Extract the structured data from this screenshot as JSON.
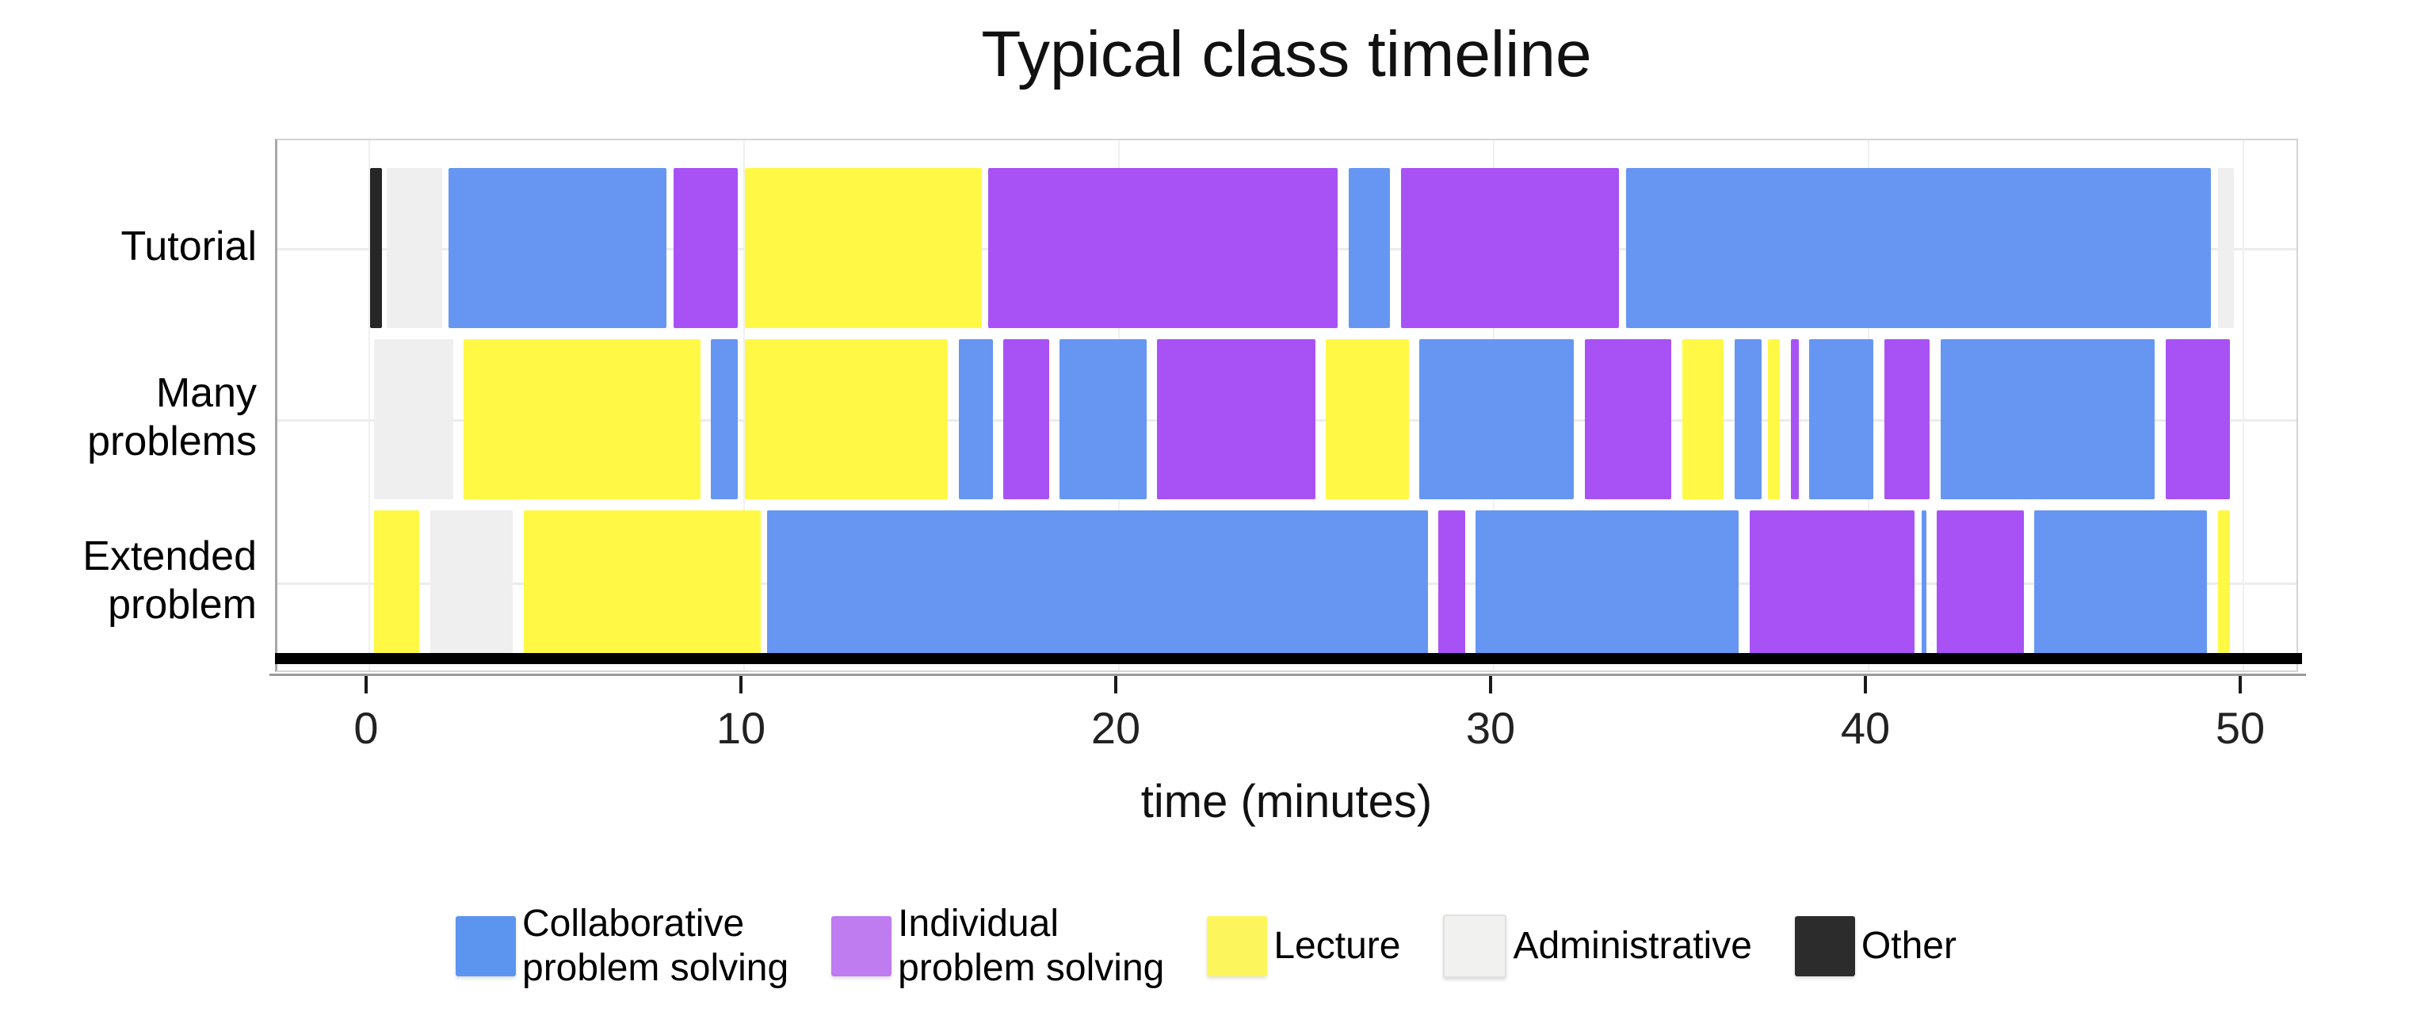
{
  "title": "Typical class timeline",
  "xlabel": "time (minutes)",
  "chart_data": {
    "type": "timeline-bar",
    "title": "Typical class timeline",
    "xlabel": "time (minutes)",
    "x_ticks": [
      0,
      10,
      20,
      30,
      40,
      50
    ],
    "x_tick_labels": [
      "0",
      "10",
      "20",
      "30",
      "40",
      "50"
    ],
    "xlim": [
      -2.4,
      51.5
    ],
    "grid": "light gray at row centers and x ticks",
    "legend_position": "bottom",
    "categories": {
      "collaborative": {
        "label": "Collaborative problem solving",
        "color": "#6696F2"
      },
      "individual": {
        "label": "Individual problem solving",
        "color": "#A852F5"
      },
      "lecture": {
        "label": "Lecture",
        "color": "#FFF946"
      },
      "administrative": {
        "label": "Administrative",
        "color": "#EFEFEF"
      },
      "other": {
        "label": "Other",
        "color": "#262626"
      }
    },
    "legend": [
      {
        "key": "collaborative",
        "label_lines": [
          "Collaborative",
          "problem solving"
        ],
        "swatch": "#5B95F0"
      },
      {
        "key": "individual",
        "label_lines": [
          "Individual",
          "problem solving"
        ],
        "swatch": "#BE7CF0"
      },
      {
        "key": "lecture",
        "label_lines": [
          "Lecture"
        ],
        "swatch": "#FCF65C"
      },
      {
        "key": "administrative",
        "label_lines": [
          "Administrative"
        ],
        "swatch": "#F1F1F0"
      },
      {
        "key": "other",
        "label_lines": [
          "Other"
        ],
        "swatch": "#2D2C2C"
      }
    ],
    "rows": [
      {
        "label": "Tutorial",
        "label_lines": [
          "Tutorial"
        ],
        "segments": [
          {
            "start": 0.0,
            "end": 0.4,
            "category": "other"
          },
          {
            "start": 0.45,
            "end": 2.0,
            "category": "administrative"
          },
          {
            "start": 2.1,
            "end": 8.0,
            "category": "collaborative"
          },
          {
            "start": 8.1,
            "end": 9.9,
            "category": "individual"
          },
          {
            "start": 10.0,
            "end": 16.4,
            "category": "lecture"
          },
          {
            "start": 16.5,
            "end": 25.9,
            "category": "individual"
          },
          {
            "start": 26.1,
            "end": 27.3,
            "category": "collaborative"
          },
          {
            "start": 27.5,
            "end": 33.4,
            "category": "individual"
          },
          {
            "start": 33.5,
            "end": 49.2,
            "category": "collaborative"
          },
          {
            "start": 49.3,
            "end": 49.8,
            "category": "administrative"
          }
        ]
      },
      {
        "label": "Many problems",
        "label_lines": [
          "Many",
          "problems"
        ],
        "segments": [
          {
            "start": 0.1,
            "end": 2.3,
            "category": "administrative"
          },
          {
            "start": 2.5,
            "end": 8.9,
            "category": "lecture"
          },
          {
            "start": 9.1,
            "end": 9.9,
            "category": "collaborative"
          },
          {
            "start": 10.0,
            "end": 15.5,
            "category": "lecture"
          },
          {
            "start": 15.7,
            "end": 16.7,
            "category": "collaborative"
          },
          {
            "start": 16.9,
            "end": 18.2,
            "category": "individual"
          },
          {
            "start": 18.4,
            "end": 20.8,
            "category": "collaborative"
          },
          {
            "start": 21.0,
            "end": 25.3,
            "category": "individual"
          },
          {
            "start": 25.5,
            "end": 27.8,
            "category": "lecture"
          },
          {
            "start": 28.0,
            "end": 32.2,
            "category": "collaborative"
          },
          {
            "start": 32.4,
            "end": 34.8,
            "category": "individual"
          },
          {
            "start": 35.0,
            "end": 36.2,
            "category": "lecture"
          },
          {
            "start": 36.4,
            "end": 37.2,
            "category": "collaborative"
          },
          {
            "start": 37.3,
            "end": 37.7,
            "category": "lecture"
          },
          {
            "start": 37.9,
            "end": 38.2,
            "category": "individual"
          },
          {
            "start": 38.4,
            "end": 40.2,
            "category": "collaborative"
          },
          {
            "start": 40.4,
            "end": 41.7,
            "category": "individual"
          },
          {
            "start": 41.9,
            "end": 47.7,
            "category": "collaborative"
          },
          {
            "start": 47.9,
            "end": 49.7,
            "category": "individual"
          }
        ]
      },
      {
        "label": "Extended problem",
        "label_lines": [
          "Extended",
          "problem"
        ],
        "segments": [
          {
            "start": 0.1,
            "end": 1.4,
            "category": "lecture"
          },
          {
            "start": 1.6,
            "end": 3.9,
            "category": "administrative"
          },
          {
            "start": 4.1,
            "end": 10.5,
            "category": "lecture"
          },
          {
            "start": 10.6,
            "end": 28.3,
            "category": "collaborative"
          },
          {
            "start": 28.5,
            "end": 29.3,
            "category": "individual"
          },
          {
            "start": 29.5,
            "end": 36.6,
            "category": "collaborative"
          },
          {
            "start": 36.8,
            "end": 41.3,
            "category": "individual"
          },
          {
            "start": 41.4,
            "end": 41.6,
            "category": "collaborative"
          },
          {
            "start": 41.8,
            "end": 44.2,
            "category": "individual"
          },
          {
            "start": 44.4,
            "end": 49.1,
            "category": "collaborative"
          },
          {
            "start": 49.3,
            "end": 49.7,
            "category": "lecture"
          }
        ]
      }
    ]
  }
}
